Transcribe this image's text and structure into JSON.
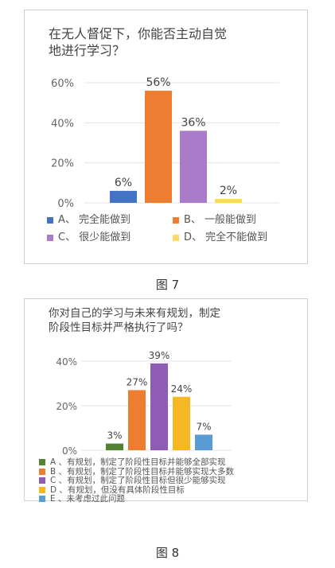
{
  "figure7": {
    "title_line1": "在无人督促下，你能否主动自觉",
    "title_line2": "地进行学习？",
    "caption": "图 7",
    "chart_data": {
      "type": "bar",
      "categories": [
        "A、完全能做到",
        "B、一般能做到",
        "C、很少能做到",
        "D、完全不能做到"
      ],
      "values": [
        6,
        56,
        36,
        2
      ],
      "value_labels": [
        "6%",
        "56%",
        "36%",
        "2%"
      ],
      "colors": [
        "#4472C4",
        "#ED7D31",
        "#A97BC9",
        "#FFD966"
      ],
      "ylim": [
        0,
        60
      ],
      "yticks": [
        0,
        20,
        40,
        60
      ],
      "ytick_labels": [
        "0%",
        "20%",
        "40%",
        "60%"
      ],
      "legend": [
        {
          "label": "A、 完全能做到",
          "color": "#4472C4"
        },
        {
          "label": "B、 一般能做到",
          "color": "#ED7D31"
        },
        {
          "label": "C、 很少能做到",
          "color": "#A97BC9"
        },
        {
          "label": "D、 完全不能做到",
          "color": "#FFD966"
        }
      ],
      "legend_position": "bottom"
    }
  },
  "figure8": {
    "title_line1": "你对自己的学习与未来有规划，制定",
    "title_line2": "阶段性目标并严格执行了吗？",
    "caption": "图 8",
    "chart_data": {
      "type": "bar",
      "categories": [
        "A",
        "B",
        "C",
        "D",
        "E"
      ],
      "values": [
        3,
        27,
        39,
        24,
        7
      ],
      "value_labels": [
        "3%",
        "27%",
        "39%",
        "24%",
        "7%"
      ],
      "colors": [
        "#548235",
        "#ED7D31",
        "#8E5BB5",
        "#F4B922",
        "#5B9BD5"
      ],
      "ylim": [
        0,
        40
      ],
      "yticks": [
        0,
        20,
        40
      ],
      "ytick_labels": [
        "0%",
        "20%",
        "40%"
      ],
      "legend": [
        {
          "label": "A 、有规划，制定了阶段性目标并能够全部实现",
          "color": "#548235"
        },
        {
          "label": "B 、有规划，制定了阶段性目标并能够实现大多数",
          "color": "#ED7D31"
        },
        {
          "label": "C 、有规划，制定了阶段性目标但很少能够实现",
          "color": "#8E5BB5"
        },
        {
          "label": "D 、有规划，但没有具体阶段性目标",
          "color": "#F4B922"
        },
        {
          "label": "E 、未考虑过此问题",
          "color": "#5B9BD5"
        }
      ],
      "legend_position": "bottom"
    }
  }
}
